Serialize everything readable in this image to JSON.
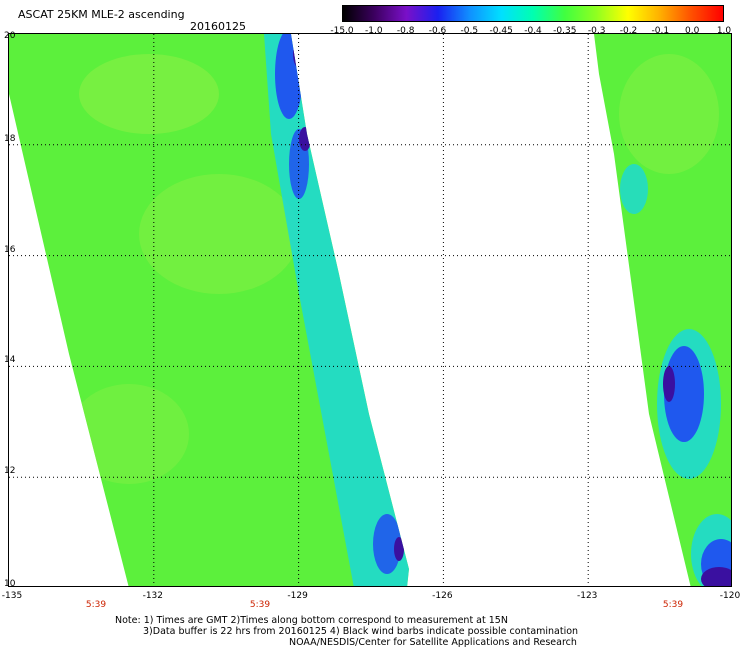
{
  "header": {
    "title": "ASCAT 25KM MLE-2 ascending",
    "date": "20160125"
  },
  "colorbar": {
    "labels": [
      "-15.0",
      "-1.0",
      "-0.8",
      "-0.6",
      "-0.5",
      "-0.45",
      "-0.4",
      "-0.35",
      "-0.3",
      "-0.2",
      "-0.1",
      "0.0",
      "1.0"
    ],
    "colors": [
      "#000000",
      "#3c0060",
      "#7a10c8",
      "#1a20f0",
      "#1090ff",
      "#00e0ff",
      "#00ffb0",
      "#40ff40",
      "#90ff20",
      "#ffff00",
      "#ffb000",
      "#ff5000",
      "#ff0000"
    ]
  },
  "map": {
    "latitudes": [
      "20",
      "18",
      "16",
      "14",
      "12",
      "10"
    ],
    "longitudes": [
      "-135",
      "-132",
      "-129",
      "-126",
      "-123",
      "-120"
    ],
    "pass_times": [
      "5:39",
      "5:39",
      "5:39"
    ],
    "colors": {
      "background": "#ffffff",
      "field_green": "#5cf03c",
      "field_light": "#88f044",
      "gradient_cyan": "#1ad8d8",
      "gradient_blue": "#2050f0",
      "gradient_indigo": "#3a10a0",
      "gridline": "#000000"
    }
  },
  "notes": {
    "line1": "Note: 1) Times are GMT 2)Times along bottom correspond to measurement at 15N",
    "line2": "3)Data buffer is 22 hrs from 20160125 4) Black wind barbs indicate possible contamination",
    "line3": "NOAA/NESDIS/Center for Satellite Applications and Research"
  }
}
